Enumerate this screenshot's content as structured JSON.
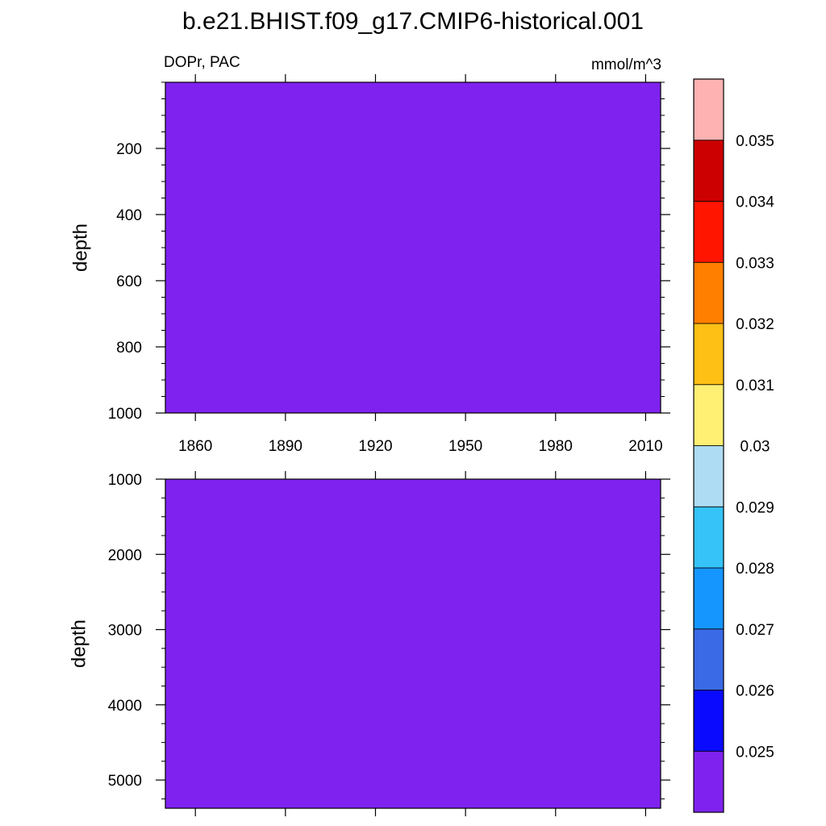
{
  "title": "b.e21.BHIST.f09_g17.CMIP6-historical.001",
  "left_subtitle": "DOPr, PAC",
  "right_subtitle": "mmol/m^3",
  "fill_color": "#7f22ef",
  "chart_data": [
    {
      "type": "heatmap",
      "panel": "upper",
      "variable": "DOPr",
      "region": "PAC",
      "units": "mmol/m^3",
      "ylabel": "depth",
      "xlim": [
        1850,
        2015
      ],
      "ylim": [
        1000,
        0
      ],
      "y_reversed": true,
      "x_ticks": [
        1860,
        1890,
        1920,
        1950,
        1980,
        2010
      ],
      "x_tick_labels": [
        "1860",
        "1890",
        "1920",
        "1950",
        "1980",
        "2010"
      ],
      "y_ticks": [
        200,
        400,
        600,
        800,
        1000
      ],
      "y_tick_labels": [
        "200",
        "400",
        "600",
        "800",
        "1000"
      ],
      "field_value": "< 0.025"
    },
    {
      "type": "heatmap",
      "panel": "lower",
      "ylabel": "depth",
      "xlim": [
        1850,
        2015
      ],
      "ylim": [
        5375,
        1000
      ],
      "y_reversed": true,
      "y_ticks": [
        1000,
        2000,
        3000,
        4000,
        5000
      ],
      "y_tick_labels": [
        "1000",
        "2000",
        "3000",
        "4000",
        "5000"
      ],
      "field_value": "< 0.025"
    }
  ],
  "colorbar": {
    "levels": [
      "0.025",
      "0.026",
      "0.027",
      "0.028",
      "0.029",
      "0.03",
      "0.031",
      "0.032",
      "0.033",
      "0.034",
      "0.035"
    ],
    "colors": [
      "#7f22ef",
      "#0a0aff",
      "#3a6ae6",
      "#1596ff",
      "#36c3f7",
      "#aedcf2",
      "#fff074",
      "#ffc016",
      "#ff7f00",
      "#ff1500",
      "#cc0000",
      "#ffb2b2"
    ]
  }
}
